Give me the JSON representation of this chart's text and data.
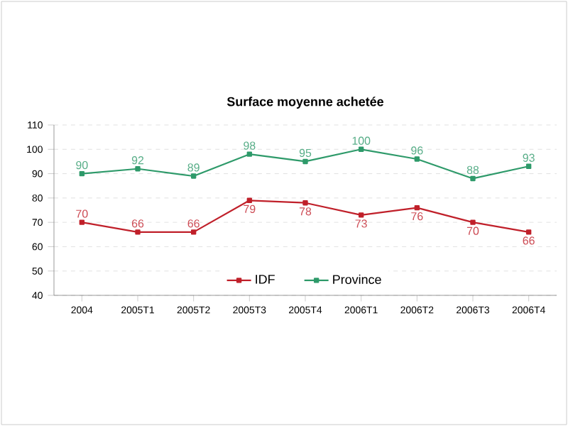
{
  "chart_data": {
    "type": "line",
    "title": "Surface moyenne achetée",
    "categories": [
      "2004",
      "2005T1",
      "2005T2",
      "2005T3",
      "2005T4",
      "2006T1",
      "2006T2",
      "2006T3",
      "2006T4"
    ],
    "series": [
      {
        "name": "IDF",
        "color": "#c0202a",
        "values": [
          70,
          66,
          66,
          79,
          78,
          73,
          76,
          70,
          66
        ]
      },
      {
        "name": "Province",
        "color": "#2e9a6a",
        "values": [
          90,
          92,
          89,
          98,
          95,
          100,
          96,
          88,
          93
        ]
      }
    ],
    "ylim": [
      40,
      110
    ],
    "yticks": [
      40,
      50,
      60,
      70,
      80,
      90,
      100,
      110
    ],
    "grid": "y",
    "legend": "bottom",
    "marker": "square",
    "line_style": "solid",
    "data_labels": true
  }
}
